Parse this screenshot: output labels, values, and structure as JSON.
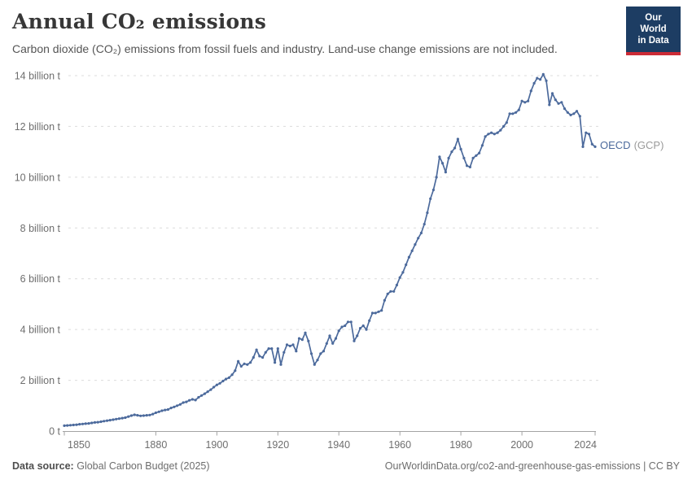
{
  "header": {
    "title": "Annual CO₂ emissions",
    "subtitle": "Carbon dioxide (CO₂) emissions from fossil fuels and industry. Land-use change emissions are not included.",
    "logo": {
      "line1": "Our World",
      "line2": "in Data",
      "bg_color": "#1d3d63",
      "bar_color": "#cc2b36"
    }
  },
  "chart_data": {
    "type": "line",
    "title": "Annual CO₂ emissions",
    "subtitle": "Carbon dioxide (CO₂) emissions from fossil fuels and industry. Land-use change emissions are not included.",
    "unit": "billion t",
    "xlabel": "",
    "ylabel": "",
    "x_domain": [
      1850,
      2024
    ],
    "y_domain": [
      0,
      14
    ],
    "x_ticks": [
      1850,
      1880,
      1900,
      1920,
      1940,
      1960,
      1980,
      2000,
      2024
    ],
    "y_ticks": [
      0,
      2,
      4,
      6,
      8,
      10,
      12,
      14
    ],
    "y_tick_labels": [
      "0 t",
      "2 billion t",
      "4 billion t",
      "6 billion t",
      "8 billion t",
      "10 billion t",
      "12 billion t",
      "14 billion t"
    ],
    "grid": "horizontal-dashed",
    "legend_position": "line-end",
    "series": [
      {
        "name": "OECD",
        "suffix": "(GCP)",
        "legend_label": "OECD (GCP)",
        "color": "#4C6A9C",
        "start_year": 1850,
        "end_year": 2024,
        "values": [
          0.21,
          0.22,
          0.23,
          0.24,
          0.25,
          0.27,
          0.28,
          0.29,
          0.3,
          0.32,
          0.34,
          0.35,
          0.37,
          0.39,
          0.41,
          0.43,
          0.45,
          0.47,
          0.49,
          0.51,
          0.53,
          0.57,
          0.61,
          0.64,
          0.62,
          0.6,
          0.61,
          0.62,
          0.63,
          0.67,
          0.72,
          0.76,
          0.8,
          0.83,
          0.85,
          0.91,
          0.95,
          1.0,
          1.05,
          1.12,
          1.15,
          1.21,
          1.25,
          1.22,
          1.33,
          1.4,
          1.47,
          1.55,
          1.63,
          1.73,
          1.82,
          1.88,
          1.97,
          2.05,
          2.1,
          2.22,
          2.38,
          2.75,
          2.55,
          2.65,
          2.62,
          2.7,
          2.9,
          3.2,
          2.95,
          2.9,
          3.1,
          3.25,
          3.25,
          2.7,
          3.25,
          2.62,
          3.1,
          3.4,
          3.35,
          3.4,
          3.15,
          3.65,
          3.6,
          3.87,
          3.55,
          3.05,
          2.62,
          2.8,
          3.05,
          3.15,
          3.45,
          3.75,
          3.45,
          3.65,
          3.95,
          4.1,
          4.15,
          4.3,
          4.3,
          3.55,
          3.75,
          4.05,
          4.15,
          4.0,
          4.35,
          4.65,
          4.65,
          4.7,
          4.75,
          5.15,
          5.4,
          5.5,
          5.5,
          5.75,
          6.05,
          6.25,
          6.55,
          6.85,
          7.1,
          7.35,
          7.6,
          7.8,
          8.15,
          8.6,
          9.15,
          9.5,
          10.0,
          10.8,
          10.55,
          10.2,
          10.75,
          11.0,
          11.15,
          11.5,
          11.1,
          10.75,
          10.45,
          10.4,
          10.75,
          10.85,
          10.95,
          11.25,
          11.6,
          11.7,
          11.75,
          11.7,
          11.75,
          11.85,
          12.0,
          12.15,
          12.5,
          12.5,
          12.55,
          12.65,
          13.0,
          12.95,
          13.0,
          13.4,
          13.7,
          13.9,
          13.85,
          14.05,
          13.8,
          12.85,
          13.3,
          13.05,
          12.9,
          12.95,
          12.7,
          12.55,
          12.45,
          12.5,
          12.6,
          12.4,
          11.2,
          11.75,
          11.7,
          11.3,
          11.2
        ]
      }
    ]
  },
  "footer": {
    "source_label": "Data source:",
    "source_value": "Global Carbon Budget (2025)",
    "link": "OurWorldinData.org/co2-and-greenhouse-gas-emissions | CC BY"
  }
}
